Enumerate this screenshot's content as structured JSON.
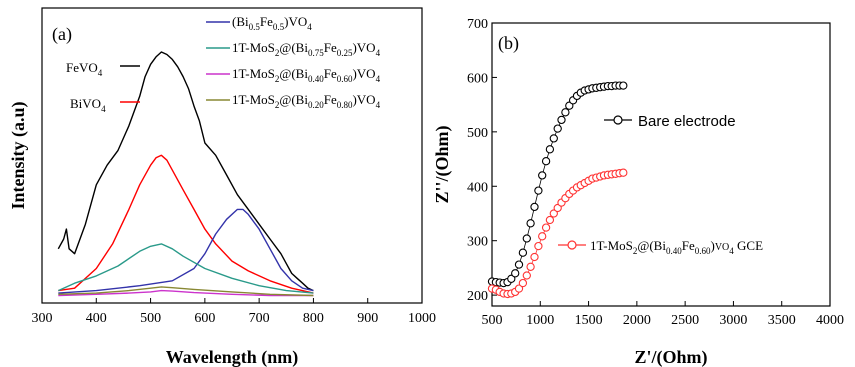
{
  "chart_data": [
    {
      "type": "line",
      "panel_label": "(a)",
      "xlabel": "Wavelength (nm)",
      "ylabel": "Intensity (a.u)",
      "xlim": [
        300,
        1000
      ],
      "ylim": [
        0,
        1
      ],
      "xticks": [
        300,
        400,
        500,
        600,
        700,
        800,
        900,
        1000
      ],
      "grid": false,
      "series": [
        {
          "name": "FeVO4",
          "name_main": "FeVO",
          "name_sub": "4",
          "color": "#000000",
          "x": [
            330,
            340,
            345,
            350,
            360,
            380,
            400,
            420,
            440,
            460,
            480,
            490,
            500,
            510,
            520,
            530,
            540,
            550,
            560,
            570,
            580,
            590,
            600,
            620,
            640,
            660,
            680,
            700,
            720,
            740,
            750,
            760,
            770,
            780,
            790,
            800
          ],
          "y": [
            0.2,
            0.24,
            0.28,
            0.2,
            0.18,
            0.3,
            0.46,
            0.54,
            0.6,
            0.7,
            0.82,
            0.9,
            0.95,
            0.98,
            1.0,
            0.99,
            0.97,
            0.94,
            0.9,
            0.85,
            0.78,
            0.72,
            0.63,
            0.58,
            0.5,
            0.42,
            0.36,
            0.3,
            0.24,
            0.18,
            0.14,
            0.1,
            0.08,
            0.06,
            0.04,
            0.03
          ]
        },
        {
          "name": "BiVO4",
          "name_main": "BiVO",
          "name_sub": "4",
          "color": "#ff0000",
          "x": [
            330,
            360,
            400,
            430,
            460,
            480,
            500,
            510,
            520,
            530,
            540,
            560,
            580,
            600,
            620,
            650,
            680,
            720,
            760,
            800
          ],
          "y": [
            0.03,
            0.04,
            0.12,
            0.22,
            0.36,
            0.46,
            0.54,
            0.57,
            0.58,
            0.56,
            0.52,
            0.44,
            0.36,
            0.28,
            0.22,
            0.15,
            0.11,
            0.07,
            0.04,
            0.02
          ]
        },
        {
          "name": "(Bi0.5Fe0.5)VO4",
          "legend_parts": [
            [
              "(Bi",
              ""
            ],
            [
              "0.5",
              "sub"
            ],
            [
              "Fe",
              ""
            ],
            [
              "0.5",
              "sub"
            ],
            [
              ")VO",
              ""
            ],
            [
              "4",
              "sub"
            ]
          ],
          "color": "#3333aa",
          "x": [
            330,
            400,
            480,
            540,
            580,
            600,
            620,
            640,
            660,
            670,
            680,
            700,
            720,
            740,
            760,
            780,
            800
          ],
          "y": [
            0.02,
            0.03,
            0.05,
            0.07,
            0.12,
            0.18,
            0.26,
            0.32,
            0.36,
            0.36,
            0.34,
            0.28,
            0.2,
            0.12,
            0.07,
            0.04,
            0.03
          ]
        },
        {
          "name": "1T-MoS2@(Bi0.75Fe0.25)VO4",
          "legend_parts": [
            [
              "1T-MoS",
              ""
            ],
            [
              "2",
              "sub"
            ],
            [
              "@(Bi",
              ""
            ],
            [
              "0.75",
              "sub"
            ],
            [
              "Fe",
              ""
            ],
            [
              "0.25",
              "sub"
            ],
            [
              ")VO",
              ""
            ],
            [
              "4",
              "sub"
            ]
          ],
          "color": "#2a9a8a",
          "x": [
            330,
            360,
            400,
            440,
            480,
            500,
            520,
            540,
            560,
            600,
            650,
            700,
            750,
            800
          ],
          "y": [
            0.03,
            0.06,
            0.09,
            0.13,
            0.19,
            0.21,
            0.22,
            0.2,
            0.17,
            0.12,
            0.08,
            0.05,
            0.03,
            0.02
          ]
        },
        {
          "name": "1T-MoS2@(Bi0.40Fe0.60)VO4",
          "legend_parts": [
            [
              "1T-MoS",
              ""
            ],
            [
              "2",
              "sub"
            ],
            [
              "@(Bi",
              ""
            ],
            [
              "0.40",
              "sub"
            ],
            [
              "Fe",
              ""
            ],
            [
              "0.60",
              "sub"
            ],
            [
              ")VO",
              ""
            ],
            [
              "4",
              "sub"
            ]
          ],
          "color": "#cc33cc",
          "x": [
            330,
            400,
            460,
            500,
            520,
            540,
            580,
            650,
            720,
            800
          ],
          "y": [
            0.01,
            0.015,
            0.02,
            0.025,
            0.03,
            0.028,
            0.022,
            0.015,
            0.01,
            0.01
          ]
        },
        {
          "name": "1T-MoS2@(Bi0.20Fe0.80)VO4",
          "legend_parts": [
            [
              "1T-MoS",
              ""
            ],
            [
              "2",
              "sub"
            ],
            [
              "@(Bi",
              ""
            ],
            [
              "0.20",
              "sub"
            ],
            [
              "Fe",
              ""
            ],
            [
              "0.80",
              "sub"
            ],
            [
              ")VO",
              ""
            ],
            [
              "4",
              "sub"
            ]
          ],
          "color": "#888833",
          "x": [
            330,
            400,
            460,
            500,
            520,
            540,
            580,
            650,
            720,
            800
          ],
          "y": [
            0.015,
            0.02,
            0.03,
            0.04,
            0.045,
            0.042,
            0.035,
            0.025,
            0.015,
            0.01
          ]
        }
      ]
    },
    {
      "type": "scatter",
      "panel_label": "(b)",
      "xlabel": "Z'/(Ohm)",
      "ylabel": "Z''/(Ohm)",
      "xlim": [
        500,
        4000
      ],
      "ylim": [
        180,
        700
      ],
      "xticks": [
        500,
        1000,
        1500,
        2000,
        2500,
        3000,
        3500,
        4000
      ],
      "yticks": [
        200,
        300,
        400,
        500,
        600,
        700
      ],
      "grid": false,
      "series": [
        {
          "name": "Bare electrode",
          "color": "#000000",
          "x": [
            500,
            540,
            580,
            620,
            660,
            700,
            740,
            780,
            820,
            860,
            900,
            940,
            980,
            1020,
            1060,
            1100,
            1140,
            1180,
            1220,
            1260,
            1300,
            1340,
            1380,
            1420,
            1460,
            1500,
            1540,
            1580,
            1620,
            1660,
            1700,
            1740,
            1780,
            1820,
            1860
          ],
          "y": [
            225,
            224,
            223,
            222,
            224,
            230,
            240,
            256,
            278,
            304,
            332,
            362,
            392,
            420,
            446,
            468,
            488,
            506,
            522,
            536,
            548,
            558,
            566,
            572,
            576,
            578,
            580,
            581,
            582,
            583,
            584,
            584,
            585,
            585,
            585
          ]
        },
        {
          "name": "1T-MoS2@(Bi0.40Fe0.60)VO4 GCE",
          "legend_parts": [
            [
              "1T-MoS",
              ""
            ],
            [
              "2",
              "sub"
            ],
            [
              "@(Bi",
              ""
            ],
            [
              "0.40",
              "sub"
            ],
            [
              "Fe",
              ""
            ],
            [
              "0.60",
              "sub"
            ],
            [
              ")",
              ""
            ],
            [
              "VO",
              "small"
            ],
            [
              "4",
              "sub"
            ],
            [
              "  GCE",
              ""
            ]
          ],
          "color": "#ff3333",
          "x": [
            500,
            540,
            580,
            620,
            660,
            700,
            740,
            780,
            820,
            860,
            900,
            940,
            980,
            1020,
            1060,
            1100,
            1140,
            1180,
            1220,
            1260,
            1300,
            1340,
            1380,
            1420,
            1460,
            1500,
            1540,
            1580,
            1620,
            1660,
            1700,
            1740,
            1780,
            1820,
            1860
          ],
          "y": [
            212,
            210,
            206,
            203,
            202,
            203,
            206,
            212,
            222,
            236,
            252,
            270,
            290,
            308,
            324,
            338,
            350,
            360,
            370,
            378,
            386,
            392,
            398,
            402,
            406,
            410,
            414,
            416,
            418,
            420,
            421,
            422,
            423,
            424,
            425
          ]
        }
      ]
    }
  ]
}
